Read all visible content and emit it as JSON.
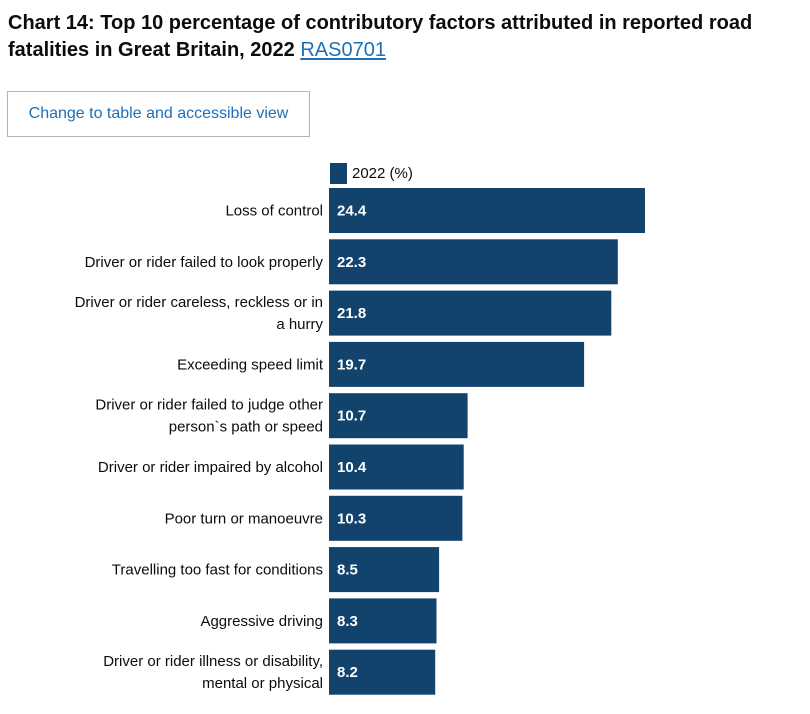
{
  "title": {
    "text": "Chart 14: Top 10 percentage of contributory factors attributed in reported road fatalities in Great Britain, 2022",
    "link_text": "RAS0701"
  },
  "view_toggle_label": "Change to table and accessible view",
  "colors": {
    "bar": "#12436d",
    "link": "#1d70b8"
  },
  "chart_data": {
    "type": "bar",
    "orientation": "horizontal",
    "title": "Chart 14: Top 10 percentage of contributory factors attributed in reported road fatalities in Great Britain, 2022",
    "legend": {
      "entries": [
        "2022 (%)"
      ],
      "placement": "top"
    },
    "categories": [
      "Loss of control",
      "Driver or rider failed to look properly",
      "Driver or rider careless, reckless or in a hurry",
      "Exceeding speed limit",
      "Driver or rider failed to judge other person`s path or speed",
      "Driver or rider impaired by alcohol",
      "Poor turn or manoeuvre",
      "Travelling too fast for conditions",
      "Aggressive driving",
      "Driver or rider illness or disability, mental or physical"
    ],
    "category_label_lines": [
      [
        "Loss of control"
      ],
      [
        "Driver or rider failed to look properly"
      ],
      [
        "Driver or rider careless, reckless or in",
        "a hurry"
      ],
      [
        "Exceeding speed limit"
      ],
      [
        "Driver or rider failed to judge other",
        "person`s path or speed"
      ],
      [
        "Driver or rider impaired by alcohol"
      ],
      [
        "Poor turn or manoeuvre"
      ],
      [
        "Travelling too fast for conditions"
      ],
      [
        "Aggressive driving"
      ],
      [
        "Driver or rider illness or disability,",
        "mental or physical"
      ]
    ],
    "series": [
      {
        "name": "2022 (%)",
        "values": [
          24.4,
          22.3,
          21.8,
          19.7,
          10.7,
          10.4,
          10.3,
          8.5,
          8.3,
          8.2
        ]
      }
    ],
    "value_labels": [
      "24.4",
      "22.3",
      "21.8",
      "19.7",
      "10.7",
      "10.4",
      "10.3",
      "8.5",
      "8.3",
      "8.2"
    ],
    "xlabel": "",
    "ylabel": "",
    "grid": false
  }
}
